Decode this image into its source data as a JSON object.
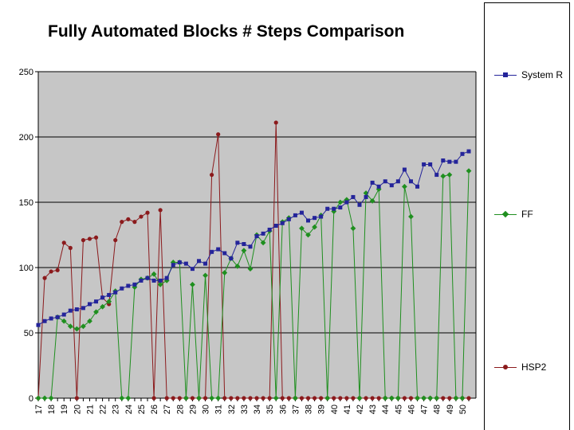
{
  "title": "Fully Automated Blocks # Steps Comparison",
  "legend": {
    "entries": [
      {
        "label": "System R",
        "color": "#24249A",
        "marker": "square"
      },
      {
        "label": "FF",
        "color": "#1F8F1F",
        "marker": "diamond"
      },
      {
        "label": "HSP2",
        "color": "#8B1A1C",
        "marker": "circle"
      }
    ]
  },
  "chart_data": {
    "type": "line",
    "title": "Fully Automated Blocks # Steps Comparison",
    "xlabel": "",
    "ylabel": "",
    "x_tick_labels": [
      17,
      18,
      19,
      20,
      21,
      22,
      23,
      24,
      25,
      26,
      27,
      28,
      29,
      30,
      31,
      32,
      33,
      34,
      35,
      36,
      37,
      38,
      39,
      40,
      41,
      42,
      43,
      44,
      45,
      46,
      47,
      48,
      49,
      50
    ],
    "points_per_x_label": 2,
    "ylim": [
      0,
      250
    ],
    "y_ticks": [
      0,
      50,
      100,
      150,
      200,
      250
    ],
    "grid": true,
    "plot_bg": "#C6C6C6",
    "grid_color": "#000000",
    "legend_position": "right",
    "series": [
      {
        "name": "System R",
        "color": "#24249A",
        "marker": "square",
        "values": [
          56,
          59,
          61,
          62,
          64,
          67,
          68,
          69,
          72,
          74,
          77,
          79,
          81,
          84,
          86,
          87,
          90,
          92,
          90,
          90,
          92,
          102,
          104,
          103,
          99,
          105,
          103,
          112,
          114,
          111,
          107,
          119,
          118,
          116,
          124,
          126,
          129,
          132,
          134,
          137,
          140,
          142,
          136,
          138,
          139,
          145,
          145,
          146,
          150,
          154,
          148,
          154,
          165,
          162,
          166,
          163,
          166,
          175,
          166,
          162,
          179,
          179,
          171,
          182,
          181,
          181,
          187,
          189
        ]
      },
      {
        "name": "FF",
        "color": "#1F8F1F",
        "marker": "diamond",
        "values": [
          0,
          0,
          0,
          62,
          59,
          55,
          53,
          55,
          59,
          66,
          70,
          74,
          82,
          0,
          0,
          85,
          91,
          92,
          95,
          87,
          90,
          104,
          104,
          0,
          87,
          0,
          94,
          0,
          0,
          96,
          107,
          101,
          113,
          99,
          125,
          119,
          128,
          0,
          135,
          138,
          0,
          130,
          125,
          131,
          140,
          0,
          143,
          150,
          152,
          130,
          0,
          157,
          151,
          160,
          0,
          0,
          0,
          162,
          139,
          0,
          0,
          0,
          0,
          170,
          171,
          0,
          0,
          174
        ]
      },
      {
        "name": "HSP2",
        "color": "#8B1A1C",
        "marker": "circle",
        "values": [
          0,
          92,
          97,
          98,
          119,
          115,
          0,
          121,
          122,
          123,
          77,
          72,
          121,
          135,
          137,
          135,
          139,
          142,
          0,
          144,
          0,
          0,
          0,
          0,
          0,
          0,
          0,
          171,
          202,
          0,
          0,
          0,
          0,
          0,
          0,
          0,
          0,
          211,
          0,
          0,
          0,
          0,
          0,
          0,
          0,
          0,
          0,
          0,
          0,
          0,
          0,
          0,
          0,
          0,
          0,
          0,
          0,
          0,
          0,
          0,
          0,
          0,
          0,
          0,
          0,
          0,
          0,
          0
        ]
      }
    ]
  }
}
